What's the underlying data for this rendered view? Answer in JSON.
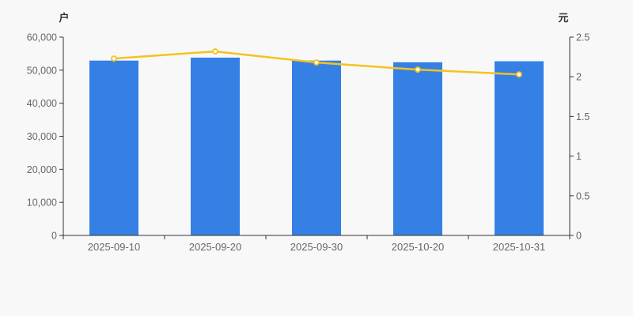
{
  "background": "#f8f8f8",
  "chart_data": {
    "type": "bar",
    "subtype": "dual-axis-bar-plus-line",
    "title": "",
    "categories": [
      "2025-09-10",
      "2025-09-20",
      "2025-09-30",
      "2025-10-20",
      "2025-10-31"
    ],
    "series": [
      {
        "name": "户",
        "type": "bar",
        "axis": "left",
        "color": "#3580e4",
        "values": [
          52900,
          53800,
          52900,
          52400,
          52700
        ]
      },
      {
        "name": "元",
        "type": "line",
        "axis": "right",
        "color": "#f5c31e",
        "marker_fill": "#ffffff",
        "values": [
          2.23,
          2.32,
          2.18,
          2.09,
          2.03
        ]
      }
    ],
    "left_axis": {
      "name": "户",
      "min": 0,
      "max": 60000,
      "interval": 10000,
      "tick_labels": [
        "0",
        "10,000",
        "20,000",
        "30,000",
        "40,000",
        "50,000",
        "60,000"
      ]
    },
    "right_axis": {
      "name": "元",
      "min": 0,
      "max": 2.5,
      "interval": 0.5,
      "tick_labels": [
        "0",
        "0.5",
        "1",
        "1.5",
        "2",
        "2.5"
      ]
    },
    "grid_lines": false,
    "legend": false,
    "axis_color": "#333333",
    "tick_label_color": "#666666"
  }
}
